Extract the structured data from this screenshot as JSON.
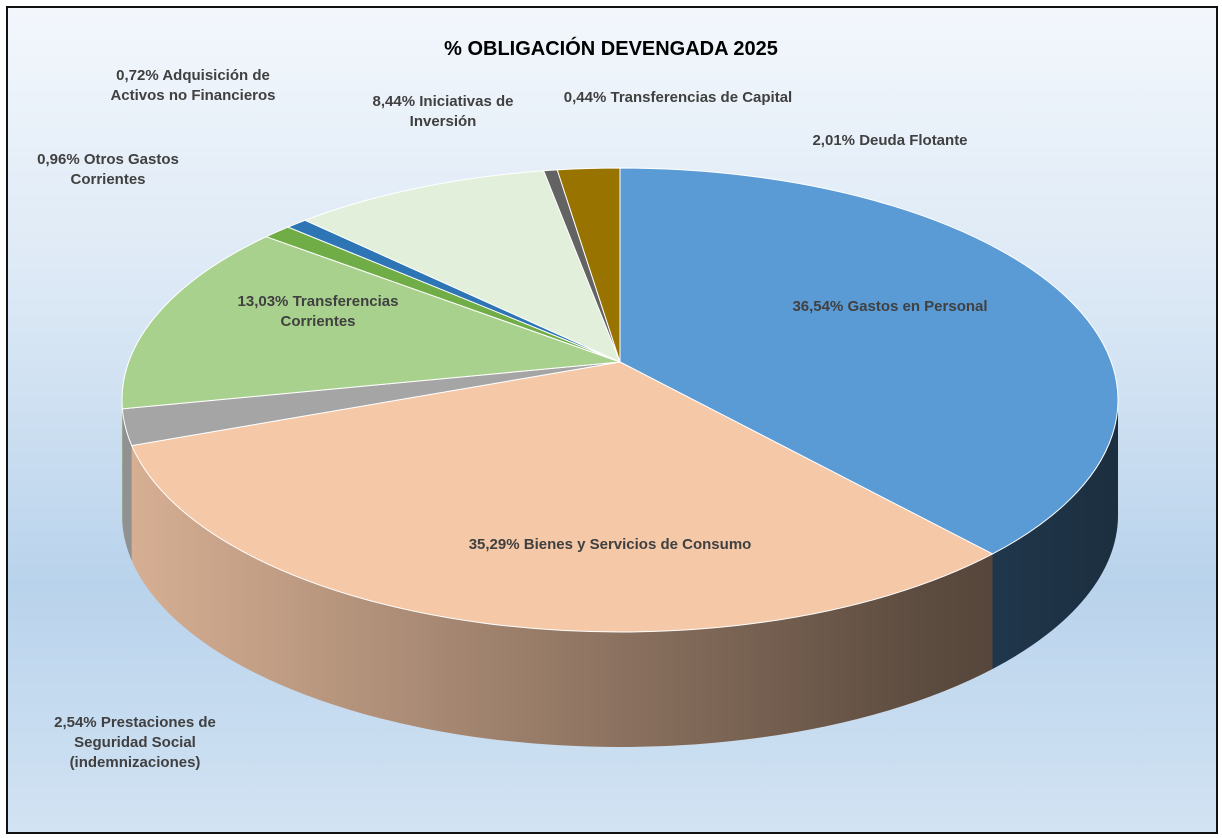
{
  "chart_data": {
    "type": "pie",
    "title": "% OBLIGACIÓN DEVENGADA 2025",
    "categories": [
      "Gastos en Personal",
      "Bienes y Servicios de Consumo",
      "Prestaciones de Seguridad Social (indemnizaciones)",
      "Transferencias Corrientes",
      "Otros Gastos Corrientes",
      "Adquisición de Activos no Financieros",
      "Iniciativas de Inversión",
      "Transferencias de Capital",
      "Deuda Flotante"
    ],
    "values": [
      36.54,
      35.29,
      2.54,
      13.03,
      0.96,
      0.72,
      8.44,
      0.44,
      2.01
    ],
    "value_labels": [
      "36,54%",
      "35,29%",
      "2,54%",
      "13,03%",
      "0,96%",
      "0,72%",
      "8,44%",
      "0,44%",
      "2,01%"
    ],
    "colors": [
      "#5b9bd5",
      "#f5c8a8",
      "#a5a5a5",
      "#a9d18e",
      "#70ad47",
      "#2e75b6",
      "#e2efda",
      "#636363",
      "#997300"
    ]
  }
}
